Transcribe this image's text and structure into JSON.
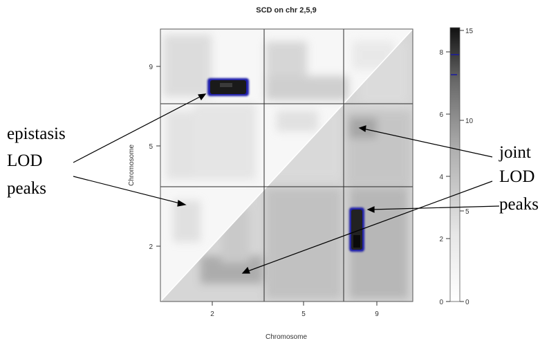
{
  "chart_data": {
    "type": "heatmap",
    "title": "SCD on chr 2,5,9",
    "xlabel": "Chromosome",
    "ylabel": "Chromosome",
    "chromosomes": [
      "2",
      "5",
      "9"
    ],
    "x_ticks": [
      "2",
      "5",
      "9"
    ],
    "y_ticks": [
      "2",
      "5",
      "9"
    ],
    "upper_triangle": "epistasis LOD",
    "lower_triangle": "joint LOD",
    "colorbar_left_scale": {
      "ticks": [
        "0",
        "2",
        "4",
        "6",
        "8"
      ],
      "range": [
        0,
        8.7
      ]
    },
    "colorbar_right_scale": {
      "ticks": [
        "0",
        "5",
        "10",
        "15"
      ],
      "range": [
        0,
        15
      ]
    },
    "colors": {
      "low": "#ffffff",
      "high": "#000000",
      "peak_outline": "#1a1aa0"
    },
    "peaks": [
      {
        "label": "epistasis LOD peak",
        "x_chr": "2",
        "y_chr": "9",
        "lod_scale": "left",
        "value": 8.0
      },
      {
        "label": "joint LOD peak",
        "x_chr": "9",
        "y_chr": "2",
        "lod_scale": "right",
        "value": 14.5
      }
    ]
  },
  "annotations": {
    "left": [
      "epistasis",
      "LOD",
      "peaks"
    ],
    "right": [
      "joint",
      "LOD",
      "peaks"
    ]
  }
}
